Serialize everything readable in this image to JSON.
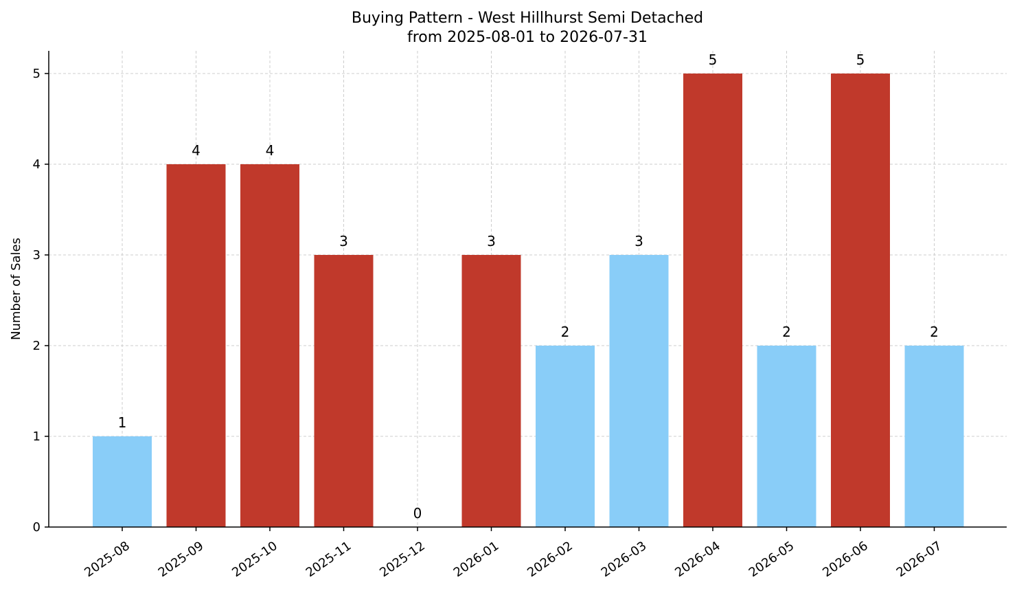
{
  "chart_data": {
    "type": "bar",
    "title": "Buying Pattern - West Hillhurst Semi Detached",
    "subtitle": "from 2025-08-01 to 2026-07-31",
    "xlabel": "",
    "ylabel": "Number of Sales",
    "categories": [
      "2025-08",
      "2025-09",
      "2025-10",
      "2025-11",
      "2025-12",
      "2026-01",
      "2026-02",
      "2026-03",
      "2026-04",
      "2026-05",
      "2026-06",
      "2026-07"
    ],
    "values": [
      1,
      4,
      4,
      3,
      0,
      3,
      2,
      3,
      5,
      2,
      5,
      2
    ],
    "bar_colors": [
      "#89cdf8",
      "#c0392b",
      "#c0392b",
      "#c0392b",
      "#c0392b",
      "#c0392b",
      "#89cdf8",
      "#89cdf8",
      "#c0392b",
      "#89cdf8",
      "#c0392b",
      "#89cdf8"
    ],
    "yticks": [
      0,
      1,
      2,
      3,
      4,
      5
    ],
    "ylim": [
      0,
      5.25
    ],
    "grid": true,
    "data_labels": true
  }
}
